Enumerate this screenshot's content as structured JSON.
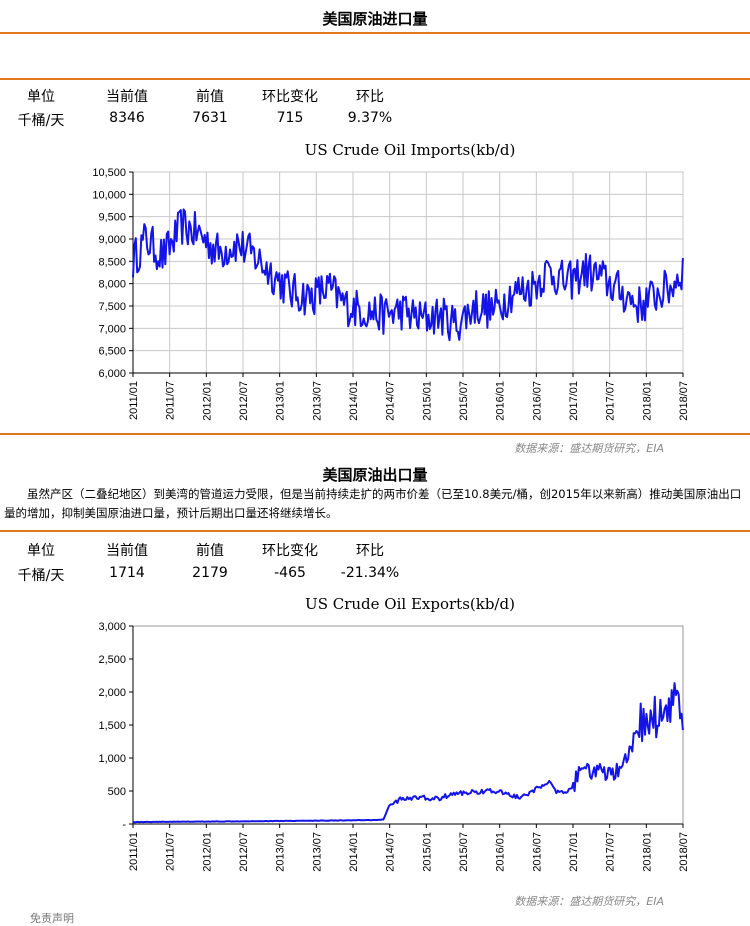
{
  "section1": {
    "title": "美国原油进口量",
    "headers": [
      "单位",
      "当前值",
      "前值",
      "环比变化",
      "环比"
    ],
    "values": [
      "千桶/天",
      "8346",
      "7631",
      "715",
      "9.37%"
    ],
    "source": "数据来源：盛达期货研究，EIA"
  },
  "section2": {
    "title": "美国原油出口量",
    "intro": "虽然产区（二叠纪地区）到美湾的管道运力受限，但是当前持续走扩的两市价差（已至10.8美元/桶，创2015年以来新高）推动美国原油出口量的增加，抑制美国原油进口量，预计后期出口量还将继续增长。",
    "headers": [
      "单位",
      "当前值",
      "前值",
      "环比变化",
      "环比"
    ],
    "values": [
      "千桶/天",
      "1714",
      "2179",
      "-465",
      "-21.34%"
    ],
    "source": "数据来源：盛达期货研究，EIA"
  },
  "footnote": "免责声明",
  "colors": {
    "accent": "#e0781e",
    "series": "#1414e6",
    "grid": "#c8c8c8"
  },
  "chart_data": [
    {
      "type": "line",
      "title": "US Crude Oil Imports(kb/d)",
      "x_ticks": [
        "2011/01",
        "2011/07",
        "2012/01",
        "2012/07",
        "2013/01",
        "2013/07",
        "2014/01",
        "2014/07",
        "2015/01",
        "2015/07",
        "2016/01",
        "2016/07",
        "2017/01",
        "2017/07",
        "2018/01",
        "2018/07"
      ],
      "y_ticks": [
        "10,500",
        "10,000",
        "9,500",
        "9,000",
        "8,500",
        "8,000",
        "7,500",
        "7,000",
        "6,500",
        "6,000"
      ],
      "ylim": [
        6000,
        10500
      ],
      "x_range": [
        "2011-01",
        "2018-07"
      ],
      "grid": true,
      "weekly": true,
      "anchors": [
        [
          "2011-01",
          8500
        ],
        [
          "2011-03",
          9000
        ],
        [
          "2011-06",
          8600
        ],
        [
          "2011-09",
          9300
        ],
        [
          "2011-12",
          9100
        ],
        [
          "2012-03",
          8700
        ],
        [
          "2012-06",
          8900
        ],
        [
          "2012-09",
          8600
        ],
        [
          "2012-12",
          8200
        ],
        [
          "2013-03",
          7800
        ],
        [
          "2013-06",
          7700
        ],
        [
          "2013-09",
          7900
        ],
        [
          "2013-12",
          7500
        ],
        [
          "2014-03",
          7400
        ],
        [
          "2014-06",
          7300
        ],
        [
          "2014-09",
          7400
        ],
        [
          "2014-12",
          7200
        ],
        [
          "2015-03",
          7300
        ],
        [
          "2015-06",
          7100
        ],
        [
          "2015-09",
          7500
        ],
        [
          "2015-12",
          7400
        ],
        [
          "2016-03",
          7800
        ],
        [
          "2016-06",
          7900
        ],
        [
          "2016-09",
          8300
        ],
        [
          "2016-12",
          8000
        ],
        [
          "2017-03",
          8300
        ],
        [
          "2017-06",
          8100
        ],
        [
          "2017-09",
          7800
        ],
        [
          "2017-12",
          7500
        ],
        [
          "2018-03",
          7800
        ],
        [
          "2018-05",
          7900
        ],
        [
          "2018-07",
          8346
        ]
      ]
    },
    {
      "type": "line",
      "title": "US Crude Oil Exports(kb/d)",
      "x_ticks": [
        "2011/01",
        "2011/07",
        "2012/01",
        "2012/07",
        "2013/01",
        "2013/07",
        "2014/01",
        "2014/07",
        "2015/01",
        "2015/07",
        "2016/01",
        "2016/07",
        "2017/01",
        "2017/07",
        "2018/01",
        "2018/07"
      ],
      "y_ticks": [
        "3,000",
        "2,500",
        "2,000",
        "1,500",
        "1,000",
        "500",
        "-"
      ],
      "ylim": [
        0,
        3000
      ],
      "x_range": [
        "2011-01",
        "2018-07"
      ],
      "grid": false,
      "weekly": true,
      "anchors": [
        [
          "2011-01",
          30
        ],
        [
          "2012-06",
          40
        ],
        [
          "2013-06",
          50
        ],
        [
          "2014-05",
          60
        ],
        [
          "2014-06",
          70
        ],
        [
          "2014-07",
          300
        ],
        [
          "2014-09",
          380
        ],
        [
          "2014-12",
          400
        ],
        [
          "2015-03",
          380
        ],
        [
          "2015-05",
          450
        ],
        [
          "2015-08",
          480
        ],
        [
          "2015-11",
          500
        ],
        [
          "2016-02",
          470
        ],
        [
          "2016-04",
          400
        ],
        [
          "2016-06",
          460
        ],
        [
          "2016-08",
          600
        ],
        [
          "2016-09",
          650
        ],
        [
          "2016-10",
          500
        ],
        [
          "2016-12",
          450
        ],
        [
          "2017-01",
          600
        ],
        [
          "2017-03",
          850
        ],
        [
          "2017-06",
          750
        ],
        [
          "2017-09",
          800
        ],
        [
          "2017-10",
          1000
        ],
        [
          "2017-12",
          1500
        ],
        [
          "2018-02",
          1600
        ],
        [
          "2018-04",
          1700
        ],
        [
          "2018-06",
          2000
        ],
        [
          "2018-07",
          1714
        ]
      ]
    }
  ]
}
